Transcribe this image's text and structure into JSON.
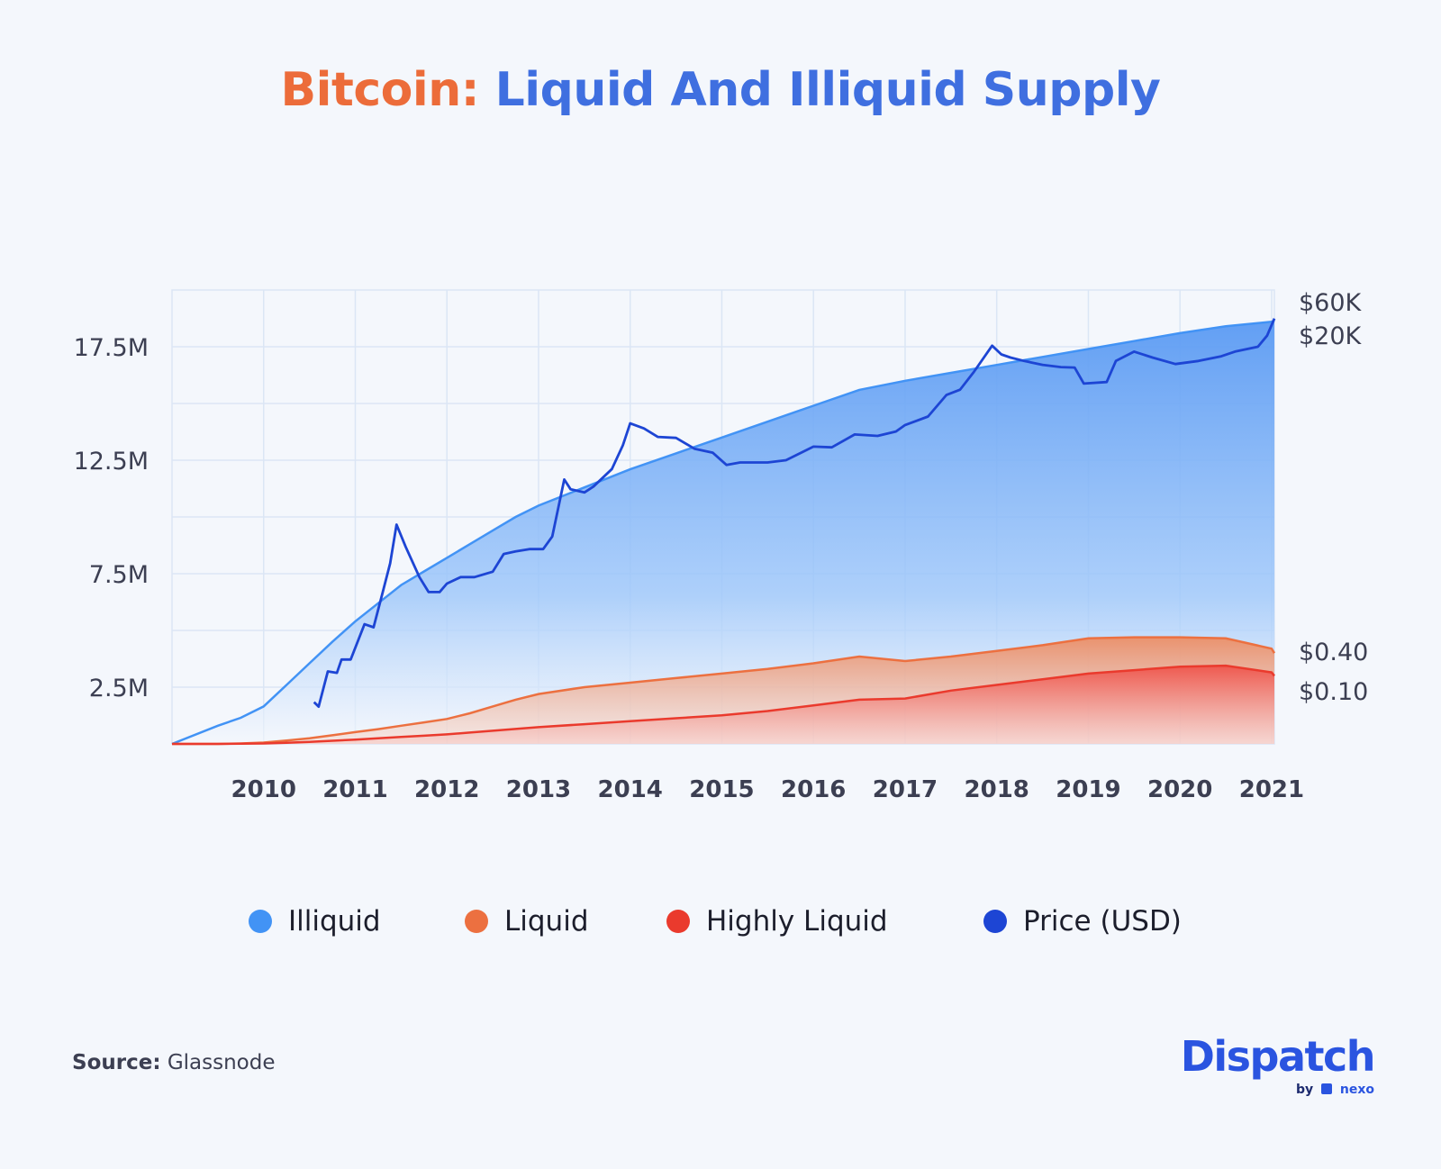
{
  "title": {
    "part1": "Bitcoin:",
    "part2": " Liquid And Illiquid Supply"
  },
  "colors": {
    "illiquid": "#4293f5",
    "liquid": "#ec7040",
    "highly_liquid": "#ea3a2d",
    "price": "#1d45d4",
    "grid": "#dbe6f5",
    "background": "#f4f7fc"
  },
  "chart_data": {
    "type": "area",
    "x_label": "",
    "y_label": "",
    "x_ticks": [
      "2010",
      "2011",
      "2012",
      "2013",
      "2014",
      "2015",
      "2016",
      "2017",
      "2018",
      "2019",
      "2020",
      "2021"
    ],
    "y_left_ticks": [
      "2.5M",
      "7.5M",
      "12.5M",
      "17.5M"
    ],
    "y_left_range": [
      0,
      20000000
    ],
    "y_right_ticks_top": [
      "$60K",
      "$20K"
    ],
    "y_right_ticks_bottom": [
      "$0.40",
      "$0.10"
    ],
    "y_right_scale": "log",
    "grid": true,
    "x": [
      2009.0,
      2009.5,
      2009.75,
      2010.0,
      2010.25,
      2010.5,
      2010.75,
      2011.0,
      2011.25,
      2011.5,
      2011.75,
      2012.0,
      2012.25,
      2012.5,
      2012.75,
      2013.0,
      2013.5,
      2014.0,
      2014.5,
      2015.0,
      2015.5,
      2016.0,
      2016.5,
      2017.0,
      2017.5,
      2018.0,
      2018.5,
      2019.0,
      2019.5,
      2020.0,
      2020.5,
      2021.0,
      2021.03
    ],
    "series": [
      {
        "name": "Illiquid",
        "values": [
          0,
          800000,
          1150000,
          1650000,
          2600000,
          3550000,
          4500000,
          5400000,
          6200000,
          7000000,
          7600000,
          8200000,
          8800000,
          9400000,
          10000000,
          10500000,
          11300000,
          12100000,
          12800000,
          13500000,
          14200000,
          14900000,
          15600000,
          16000000,
          16350000,
          16700000,
          17050000,
          17400000,
          17750000,
          18100000,
          18400000,
          18600000,
          18650000
        ]
      },
      {
        "name": "Liquid",
        "values": [
          0,
          0,
          20000,
          60000,
          150000,
          250000,
          380000,
          520000,
          650000,
          800000,
          950000,
          1100000,
          1350000,
          1650000,
          1950000,
          2200000,
          2500000,
          2700000,
          2900000,
          3100000,
          3300000,
          3550000,
          3850000,
          3650000,
          3850000,
          4100000,
          4350000,
          4650000,
          4700000,
          4700000,
          4650000,
          4200000,
          4000000
        ]
      },
      {
        "name": "Highly Liquid",
        "values": [
          0,
          0,
          10000,
          20000,
          50000,
          90000,
          140000,
          190000,
          250000,
          310000,
          360000,
          420000,
          500000,
          580000,
          660000,
          740000,
          870000,
          1000000,
          1130000,
          1260000,
          1450000,
          1700000,
          1950000,
          2000000,
          2350000,
          2600000,
          2850000,
          3100000,
          3250000,
          3400000,
          3450000,
          3150000,
          3000000
        ]
      },
      {
        "name": "Price (USD)",
        "x": [
          2010.55,
          2010.6,
          2010.7,
          2010.8,
          2010.85,
          2010.95,
          2011.1,
          2011.2,
          2011.3,
          2011.38,
          2011.45,
          2011.55,
          2011.7,
          2011.8,
          2011.92,
          2012.0,
          2012.15,
          2012.3,
          2012.5,
          2012.62,
          2012.75,
          2012.9,
          2013.05,
          2013.15,
          2013.28,
          2013.35,
          2013.5,
          2013.6,
          2013.8,
          2013.92,
          2014.0,
          2014.15,
          2014.3,
          2014.5,
          2014.7,
          2014.9,
          2015.05,
          2015.2,
          2015.5,
          2015.7,
          2016.0,
          2016.2,
          2016.45,
          2016.7,
          2016.9,
          2017.0,
          2017.25,
          2017.45,
          2017.6,
          2017.75,
          2017.95,
          2018.05,
          2018.15,
          2018.3,
          2018.5,
          2018.7,
          2018.85,
          2018.95,
          2019.2,
          2019.3,
          2019.5,
          2019.7,
          2019.95,
          2020.2,
          2020.45,
          2020.6,
          2020.85,
          2020.95,
          2021.03
        ],
        "values": [
          0.07,
          0.06,
          0.2,
          0.19,
          0.3,
          0.3,
          1.0,
          0.9,
          3.0,
          8.0,
          30.0,
          14.0,
          5.0,
          3.0,
          3.0,
          4.0,
          5.0,
          5.0,
          6.0,
          11.0,
          12.0,
          13.0,
          13.0,
          20.0,
          140.0,
          100.0,
          90.0,
          110.0,
          200.0,
          450.0,
          950.0,
          800.0,
          600.0,
          580.0,
          400.0,
          350.0,
          230.0,
          250.0,
          250.0,
          270.0,
          430.0,
          420.0,
          650.0,
          620.0,
          720.0,
          900.0,
          1200.0,
          2500.0,
          3000.0,
          5500.0,
          13500.0,
          10000.0,
          9000.0,
          8000.0,
          7000.0,
          6500.0,
          6400.0,
          3700.0,
          3900.0,
          8000.0,
          11000.0,
          9000.0,
          7200.0,
          8000.0,
          9400.0,
          11000.0,
          13000.0,
          19000.0,
          34000.0
        ]
      }
    ]
  },
  "legend": [
    {
      "label": "Illiquid",
      "color": "#4293f5"
    },
    {
      "label": "Liquid",
      "color": "#ec7040"
    },
    {
      "label": "Highly Liquid",
      "color": "#ea3a2d"
    },
    {
      "label": "Price (USD)",
      "color": "#1d45d4"
    }
  ],
  "footer": {
    "source_key": "Source:",
    "source_value": " Glassnode"
  },
  "brand": {
    "name": "Dispatch",
    "by": "by",
    "partner": "nexo"
  }
}
